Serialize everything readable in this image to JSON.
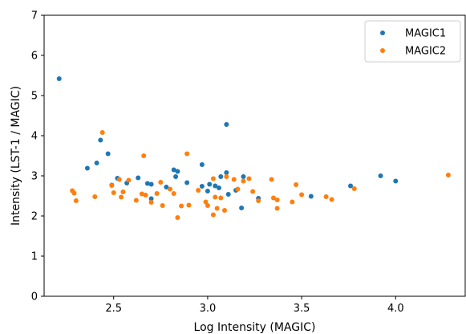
{
  "chart_data": {
    "type": "scatter",
    "xlabel": "Log Intensity (MAGIC)",
    "ylabel": "Intensity (LST-1 / MAGIC)",
    "xlim": [
      2.13,
      4.37
    ],
    "ylim": [
      0,
      7
    ],
    "xticks": [
      "2.5",
      "3.0",
      "3.5",
      "4.0"
    ],
    "xtick_values": [
      2.5,
      3.0,
      3.5,
      4.0
    ],
    "yticks": [
      "0",
      "1",
      "2",
      "3",
      "4",
      "5",
      "6",
      "7"
    ],
    "ytick_values": [
      0,
      1,
      2,
      3,
      4,
      5,
      6,
      7
    ],
    "grid": false,
    "legend_position": "top-right",
    "series": [
      {
        "name": "MAGIC1",
        "color": "#1f77b4",
        "points": [
          [
            2.21,
            5.42
          ],
          [
            2.36,
            3.19
          ],
          [
            2.41,
            3.32
          ],
          [
            2.43,
            3.89
          ],
          [
            2.47,
            3.55
          ],
          [
            2.49,
            2.77
          ],
          [
            2.52,
            2.94
          ],
          [
            2.57,
            2.82
          ],
          [
            2.63,
            2.95
          ],
          [
            2.68,
            2.81
          ],
          [
            2.7,
            2.79
          ],
          [
            2.7,
            2.43
          ],
          [
            2.78,
            2.72
          ],
          [
            2.82,
            3.15
          ],
          [
            2.83,
            2.98
          ],
          [
            2.84,
            3.11
          ],
          [
            2.89,
            2.83
          ],
          [
            2.97,
            3.28
          ],
          [
            2.97,
            2.74
          ],
          [
            3.0,
            2.62
          ],
          [
            3.01,
            2.79
          ],
          [
            3.04,
            2.75
          ],
          [
            3.06,
            2.7
          ],
          [
            3.07,
            2.98
          ],
          [
            3.1,
            3.08
          ],
          [
            3.1,
            4.28
          ],
          [
            3.11,
            2.54
          ],
          [
            3.15,
            2.64
          ],
          [
            3.19,
            2.98
          ],
          [
            3.18,
            2.2
          ],
          [
            3.27,
            2.44
          ],
          [
            3.55,
            2.49
          ],
          [
            3.76,
            2.75
          ],
          [
            3.92,
            3.0
          ],
          [
            4.0,
            2.87
          ]
        ]
      },
      {
        "name": "MAGIC2",
        "color": "#ff7f0e",
        "points": [
          [
            2.28,
            2.63
          ],
          [
            2.29,
            2.57
          ],
          [
            2.3,
            2.38
          ],
          [
            2.4,
            2.48
          ],
          [
            2.44,
            4.08
          ],
          [
            2.49,
            2.76
          ],
          [
            2.5,
            2.58
          ],
          [
            2.53,
            2.91
          ],
          [
            2.54,
            2.47
          ],
          [
            2.55,
            2.6
          ],
          [
            2.58,
            2.89
          ],
          [
            2.62,
            2.39
          ],
          [
            2.65,
            2.55
          ],
          [
            2.66,
            3.5
          ],
          [
            2.67,
            2.52
          ],
          [
            2.7,
            2.34
          ],
          [
            2.73,
            2.56
          ],
          [
            2.75,
            2.84
          ],
          [
            2.76,
            2.26
          ],
          [
            2.8,
            2.67
          ],
          [
            2.82,
            2.56
          ],
          [
            2.84,
            1.96
          ],
          [
            2.86,
            2.25
          ],
          [
            2.89,
            3.55
          ],
          [
            2.9,
            2.27
          ],
          [
            2.95,
            2.64
          ],
          [
            2.99,
            2.35
          ],
          [
            3.0,
            2.26
          ],
          [
            3.03,
            2.03
          ],
          [
            3.03,
            2.93
          ],
          [
            3.04,
            2.47
          ],
          [
            3.05,
            2.19
          ],
          [
            3.07,
            2.45
          ],
          [
            3.09,
            2.14
          ],
          [
            3.1,
            2.98
          ],
          [
            3.14,
            2.91
          ],
          [
            3.16,
            2.67
          ],
          [
            3.19,
            2.87
          ],
          [
            3.22,
            2.93
          ],
          [
            3.24,
            2.61
          ],
          [
            3.27,
            2.38
          ],
          [
            3.34,
            2.91
          ],
          [
            3.35,
            2.45
          ],
          [
            3.37,
            2.4
          ],
          [
            3.37,
            2.19
          ],
          [
            3.45,
            2.35
          ],
          [
            3.47,
            2.78
          ],
          [
            3.5,
            2.53
          ],
          [
            3.63,
            2.48
          ],
          [
            3.66,
            2.41
          ],
          [
            3.78,
            2.68
          ],
          [
            4.28,
            3.02
          ]
        ]
      }
    ]
  }
}
